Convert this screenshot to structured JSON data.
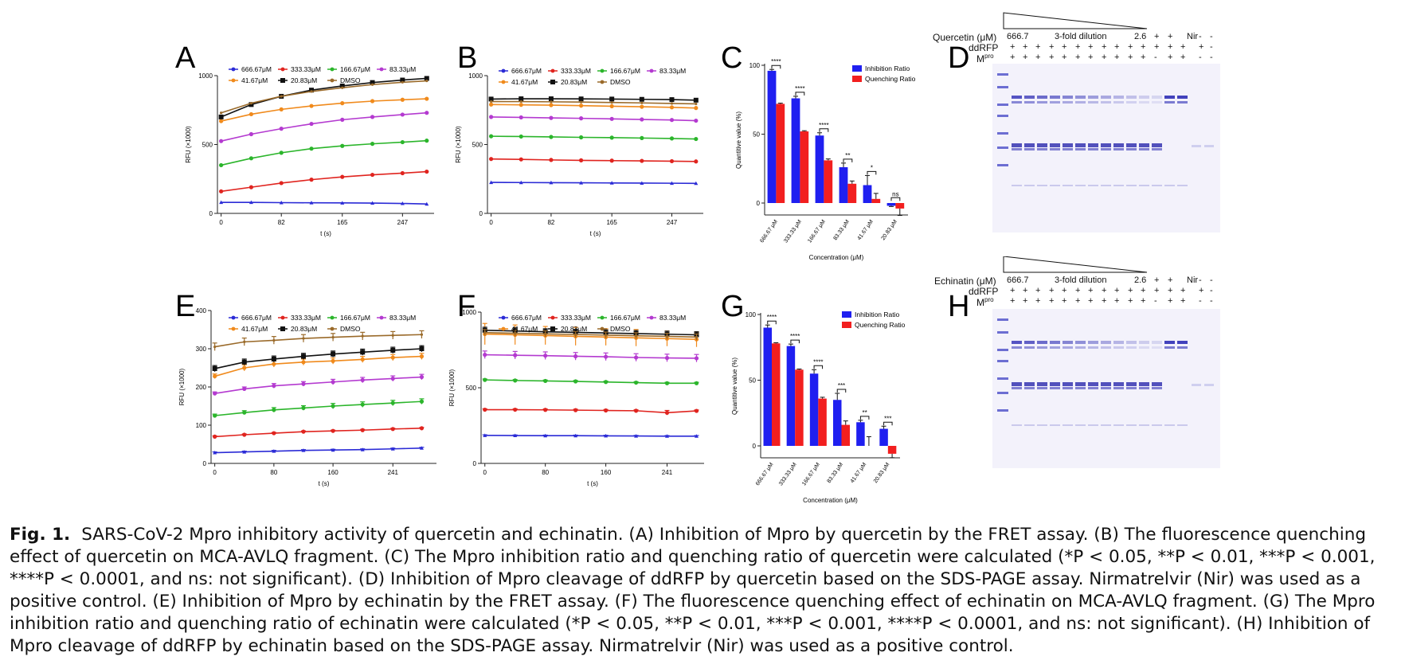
{
  "panels": {
    "A": "A",
    "B": "B",
    "C": "C",
    "D": "D",
    "E": "E",
    "F": "F",
    "G": "G",
    "H": "H"
  },
  "series_names": [
    "666.67μM",
    "333.33μM",
    "166.67μM",
    "83.33μM",
    "41.67μM",
    "20.83μM",
    "DMSO"
  ],
  "series_colors": [
    "#2b2bd6",
    "#e0241f",
    "#2bb52b",
    "#b43ad0",
    "#f08a1c",
    "#111111",
    "#9a6a2a"
  ],
  "bar_colors": {
    "inhibition": "#1f1ff0",
    "quenching": "#f21f1f"
  },
  "chart_data": [
    {
      "panel": "A",
      "type": "line",
      "xlabel": "t (s)",
      "ylabel": "RFU (×1000)",
      "xticks": [
        "0",
        "82",
        "165",
        "247"
      ],
      "xtick_values": [
        0,
        82,
        165,
        247
      ],
      "yticks": [
        "0",
        "500",
        "1000"
      ],
      "ytick_values": [
        0,
        500,
        1000
      ],
      "xlim": [
        -5,
        290
      ],
      "ylim": [
        0,
        1000
      ],
      "x": [
        0,
        41,
        82,
        123,
        165,
        206,
        247,
        280
      ],
      "series": [
        {
          "name": "666.67μM",
          "values": [
            80,
            80,
            78,
            77,
            76,
            75,
            72,
            68
          ]
        },
        {
          "name": "333.33μM",
          "values": [
            160,
            190,
            220,
            245,
            265,
            280,
            292,
            303
          ]
        },
        {
          "name": "166.67μM",
          "values": [
            350,
            400,
            440,
            470,
            490,
            505,
            517,
            528
          ]
        },
        {
          "name": "83.33μM",
          "values": [
            525,
            575,
            615,
            650,
            680,
            700,
            717,
            730
          ]
        },
        {
          "name": "41.67μM",
          "values": [
            670,
            720,
            755,
            780,
            800,
            815,
            825,
            832
          ]
        },
        {
          "name": "20.83μM",
          "values": [
            700,
            790,
            850,
            895,
            925,
            950,
            968,
            980
          ]
        },
        {
          "name": "DMSO",
          "values": [
            730,
            800,
            850,
            885,
            912,
            935,
            952,
            962
          ]
        }
      ]
    },
    {
      "panel": "B",
      "type": "line",
      "xlabel": "t (s)",
      "ylabel": "RFU (×1000)",
      "xticks": [
        "0",
        "82",
        "165",
        "247"
      ],
      "xtick_values": [
        0,
        82,
        165,
        247
      ],
      "yticks": [
        "0",
        "500",
        "1000"
      ],
      "ytick_values": [
        0,
        500,
        1000
      ],
      "xlim": [
        -5,
        290
      ],
      "ylim": [
        0,
        1000
      ],
      "x": [
        0,
        41,
        82,
        123,
        165,
        206,
        247,
        280
      ],
      "series": [
        {
          "name": "666.67μM",
          "values": [
            225,
            224,
            223,
            222,
            221,
            220,
            219,
            218
          ]
        },
        {
          "name": "333.33μM",
          "values": [
            395,
            392,
            388,
            385,
            383,
            381,
            379,
            377
          ]
        },
        {
          "name": "166.67μM",
          "values": [
            560,
            558,
            555,
            552,
            550,
            547,
            544,
            540
          ]
        },
        {
          "name": "83.33μM",
          "values": [
            700,
            697,
            693,
            690,
            686,
            682,
            678,
            673
          ]
        },
        {
          "name": "41.67μM",
          "values": [
            790,
            788,
            786,
            782,
            778,
            774,
            770,
            765
          ]
        },
        {
          "name": "20.83μM",
          "values": [
            830,
            832,
            832,
            831,
            830,
            828,
            826,
            822
          ]
        },
        {
          "name": "DMSO",
          "values": [
            812,
            812,
            810,
            808,
            805,
            802,
            798,
            795
          ]
        }
      ]
    },
    {
      "panel": "C",
      "type": "bar",
      "xlabel": "Concentration (μM)",
      "ylabel": "Quantitive value (%)",
      "categories": [
        "666.67 μM",
        "333.33 μM",
        "166.67 μM",
        "83.33 μM",
        "41.67 μM",
        "20.83 μM"
      ],
      "yticks": [
        "0",
        "50",
        "100"
      ],
      "ytick_values": [
        0,
        50,
        100
      ],
      "ylim": [
        -10,
        100
      ],
      "series": [
        {
          "name": "Inhibition Ratio",
          "values": [
            96,
            76,
            49,
            26,
            13,
            -2
          ],
          "errors": [
            1,
            1.5,
            2,
            3,
            7,
            0.5
          ]
        },
        {
          "name": "Quenching Ratio",
          "values": [
            72,
            52,
            31,
            14,
            3,
            -4
          ],
          "errors": [
            0.5,
            0.5,
            1,
            2,
            4,
            5
          ]
        }
      ],
      "significance": [
        "****",
        "****",
        "****",
        "**",
        "*",
        "ns"
      ],
      "legend": "top-right"
    },
    {
      "panel": "E",
      "type": "line",
      "xlabel": "t (s)",
      "ylabel": "RFU (×1000)",
      "xticks": [
        "0",
        "80",
        "160",
        "241"
      ],
      "xtick_values": [
        0,
        80,
        160,
        241
      ],
      "yticks": [
        "0",
        "100",
        "200",
        "300",
        "400"
      ],
      "ytick_values": [
        0,
        100,
        200,
        300,
        400
      ],
      "xlim": [
        -5,
        300
      ],
      "ylim": [
        0,
        400
      ],
      "x": [
        0,
        40,
        80,
        120,
        160,
        200,
        241,
        280
      ],
      "series": [
        {
          "name": "666.67μM",
          "values": [
            28,
            30,
            32,
            34,
            35,
            36,
            38,
            40
          ],
          "errors": [
            2,
            2,
            2,
            2,
            2,
            2,
            2,
            2
          ]
        },
        {
          "name": "333.33μM",
          "values": [
            70,
            75,
            79,
            83,
            85,
            87,
            90,
            92
          ],
          "errors": [
            2,
            2,
            2,
            2,
            2,
            2,
            2,
            2
          ]
        },
        {
          "name": "166.67μM",
          "values": [
            125,
            133,
            140,
            145,
            150,
            154,
            158,
            162
          ],
          "errors": [
            4,
            5,
            6,
            6,
            7,
            7,
            7,
            7
          ]
        },
        {
          "name": "83.33μM",
          "values": [
            183,
            195,
            203,
            208,
            213,
            218,
            222,
            226
          ],
          "errors": [
            4,
            5,
            6,
            6,
            7,
            7,
            7,
            7
          ]
        },
        {
          "name": "41.67μM",
          "values": [
            228,
            250,
            260,
            265,
            268,
            272,
            277,
            280
          ],
          "errors": [
            6,
            8,
            8,
            8,
            8,
            8,
            8,
            8
          ]
        },
        {
          "name": "20.83μM",
          "values": [
            248,
            265,
            273,
            280,
            286,
            291,
            296,
            300
          ],
          "errors": [
            8,
            8,
            8,
            8,
            8,
            8,
            8,
            8
          ]
        },
        {
          "name": "DMSO",
          "values": [
            305,
            318,
            322,
            327,
            330,
            333,
            335,
            337
          ],
          "errors": [
            10,
            10,
            10,
            10,
            10,
            10,
            10,
            10
          ]
        }
      ]
    },
    {
      "panel": "F",
      "type": "line",
      "xlabel": "t (s)",
      "ylabel": "RFU (×1000)",
      "xticks": [
        "0",
        "80",
        "160",
        "241"
      ],
      "xtick_values": [
        0,
        80,
        160,
        241
      ],
      "yticks": [
        "0",
        "500",
        "1000"
      ],
      "ytick_values": [
        0,
        500,
        1000
      ],
      "xlim": [
        -5,
        290
      ],
      "ylim": [
        0,
        1000
      ],
      "x": [
        0,
        40,
        80,
        120,
        160,
        200,
        241,
        280
      ],
      "series": [
        {
          "name": "666.67μM",
          "values": [
            185,
            184,
            183,
            183,
            182,
            181,
            180,
            180
          ],
          "errors": [
            4,
            4,
            4,
            4,
            4,
            4,
            4,
            4
          ]
        },
        {
          "name": "333.33μM",
          "values": [
            355,
            355,
            354,
            352,
            350,
            348,
            335,
            347
          ],
          "errors": [
            6,
            6,
            6,
            6,
            6,
            6,
            15,
            6
          ]
        },
        {
          "name": "166.67μM",
          "values": [
            552,
            548,
            545,
            542,
            538,
            534,
            530,
            530
          ],
          "errors": [
            6,
            6,
            6,
            6,
            6,
            6,
            6,
            6
          ]
        },
        {
          "name": "83.33μM",
          "values": [
            718,
            715,
            712,
            708,
            705,
            700,
            697,
            695
          ],
          "errors": [
            25,
            25,
            25,
            25,
            25,
            25,
            25,
            25
          ]
        },
        {
          "name": "41.67μM",
          "values": [
            855,
            850,
            845,
            840,
            835,
            830,
            825,
            820
          ],
          "errors": [
            70,
            65,
            60,
            60,
            55,
            55,
            50,
            50
          ]
        },
        {
          "name": "20.83μM",
          "values": [
            880,
            875,
            870,
            866,
            862,
            858,
            854,
            850
          ],
          "errors": [
            20,
            20,
            20,
            20,
            20,
            20,
            20,
            20
          ]
        },
        {
          "name": "DMSO",
          "values": [
            865,
            860,
            856,
            852,
            848,
            844,
            840,
            835
          ],
          "errors": [
            20,
            20,
            20,
            20,
            20,
            20,
            20,
            20
          ]
        }
      ]
    },
    {
      "panel": "G",
      "type": "bar",
      "xlabel": "Concentration (μM)",
      "ylabel": "Quantitive value (%)",
      "categories": [
        "666.67 μM",
        "333.33 μM",
        "166.67 μM",
        "83.33 μM",
        "41.67 μM",
        "20.83 μM"
      ],
      "yticks": [
        "0",
        "50",
        "100"
      ],
      "ytick_values": [
        0,
        50,
        100
      ],
      "ylim": [
        -10,
        100
      ],
      "series": [
        {
          "name": "Inhibition Ratio",
          "values": [
            90,
            76,
            55,
            35,
            18,
            13
          ],
          "errors": [
            2,
            1.5,
            3,
            5,
            1.5,
            2
          ]
        },
        {
          "name": "Quenching Ratio",
          "values": [
            78,
            58,
            36,
            16,
            0,
            -6
          ],
          "errors": [
            0.5,
            0.5,
            1,
            3,
            7,
            3
          ]
        }
      ],
      "significance": [
        "****",
        "****",
        "****",
        "***",
        "**",
        "***"
      ],
      "legend": "top-right"
    }
  ],
  "gel_D": {
    "compound_label": "Quercetin (μM)",
    "start_conc": "666.7",
    "dilution_label": "3-fold dilution",
    "end_conc": "2.6",
    "nir_label": "Nir",
    "row_ddrfp": "ddRFP",
    "row_mpro": "M",
    "row_mpro_sup": "pro",
    "compound_signs": [
      "+",
      "+",
      "+",
      "+",
      "+",
      "+",
      "+",
      "+",
      "+",
      "+",
      "+",
      "+",
      "+",
      "+",
      "-",
      "-"
    ],
    "ddrfp_signs": [
      "+",
      "+",
      "+",
      "+",
      "+",
      "+",
      "+",
      "+",
      "+",
      "+",
      "+",
      "+",
      "+",
      "+",
      "+",
      "-"
    ],
    "mpro_signs": [
      "+",
      "+",
      "+",
      "+",
      "+",
      "+",
      "+",
      "+",
      "+",
      "+",
      "+",
      "-",
      "+",
      "+",
      "-",
      "-"
    ]
  },
  "gel_H": {
    "compound_label": "Echinatin (μM)",
    "start_conc": "666.7",
    "dilution_label": "3-fold dilution",
    "end_conc": "2.6",
    "nir_label": "Nir",
    "row_ddrfp": "ddRFP",
    "row_mpro": "M",
    "row_mpro_sup": "pro",
    "compound_signs": [
      "+",
      "+",
      "+",
      "+",
      "+",
      "+",
      "+",
      "+",
      "+",
      "+",
      "+",
      "+",
      "+",
      "+",
      "-",
      "-"
    ],
    "ddrfp_signs": [
      "+",
      "+",
      "+",
      "+",
      "+",
      "+",
      "+",
      "+",
      "+",
      "+",
      "+",
      "+",
      "+",
      "+",
      "+",
      "-"
    ],
    "mpro_signs": [
      "+",
      "+",
      "+",
      "+",
      "+",
      "+",
      "+",
      "+",
      "+",
      "+",
      "+",
      "-",
      "+",
      "+",
      "-",
      "-"
    ]
  },
  "caption": {
    "fig_label": "Fig. 1.",
    "text": "SARS-CoV-2 Mpro inhibitory activity of quercetin and echinatin. (A) Inhibition of Mpro by quercetin by the FRET assay. (B) The fluorescence quenching effect of quercetin on MCA-AVLQ fragment. (C) The Mpro inhibition ratio and quenching ratio of quercetin were calculated (*P < 0.05, **P < 0.01, ***P < 0.001, ****P < 0.0001, and ns: not significant). (D) Inhibition of Mpro cleavage of ddRFP by quercetin based on the SDS-PAGE assay. Nirmatrelvir (Nir) was used as a positive control. (E) Inhibition of Mpro by echinatin by the FRET assay. (F) The fluorescence quenching effect of echinatin on MCA-AVLQ fragment. (G) The Mpro inhibition ratio and quenching ratio of echinatin were calculated (*P < 0.05, **P < 0.01, ***P < 0.001, ****P < 0.0001, and ns: not significant). (H) Inhibition of Mpro cleavage of ddRFP by echinatin based on the SDS-PAGE assay. Nirmatrelvir (Nir) was used as a positive control."
  }
}
